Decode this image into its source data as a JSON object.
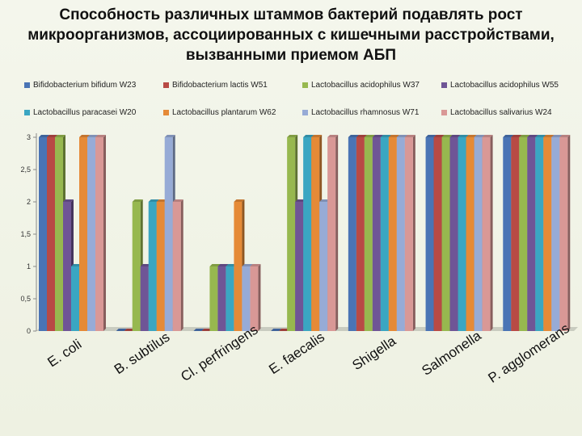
{
  "chart_data": {
    "type": "bar",
    "title_lines": [
      "Способность различных штаммов бактерий подавлять рост",
      "микроорганизмов,  ассоциированных с кишечными расстройствами,",
      "вызванными приемом АБП"
    ],
    "categories": [
      "E. coli",
      "B. subtilus",
      "Cl. perfringens",
      "E. faecalis",
      "Shigella",
      "Salmonella",
      "P. agglomerans"
    ],
    "series": [
      {
        "name": "Bifidobacterium bifidum W23",
        "color": "#4a74b5",
        "values": [
          3,
          0,
          0,
          0,
          3,
          3,
          3
        ]
      },
      {
        "name": "Bifidobacterium lactis W51",
        "color": "#b84a45",
        "values": [
          3,
          0,
          0,
          0,
          3,
          3,
          3
        ]
      },
      {
        "name": "Lactobacillus acidophilus W37",
        "color": "#97b84f",
        "values": [
          3,
          2,
          1,
          3,
          3,
          3,
          3
        ]
      },
      {
        "name": "Lactobacillus acidophilus W55",
        "color": "#6f5596",
        "values": [
          2,
          1,
          1,
          2,
          3,
          3,
          3
        ]
      },
      {
        "name": "Lactobacillus paracasei W20",
        "color": "#3aa6c2",
        "values": [
          1,
          2,
          1,
          3,
          3,
          3,
          3
        ]
      },
      {
        "name": "Lactobacillus plantarum W62",
        "color": "#e58a37",
        "values": [
          3,
          2,
          2,
          3,
          3,
          3,
          3
        ]
      },
      {
        "name": "Lactobacillus rhamnosus W71",
        "color": "#97abd6",
        "values": [
          3,
          3,
          1,
          2,
          3,
          3,
          3
        ]
      },
      {
        "name": "Lactobacillus salivarius W24",
        "color": "#d99896",
        "values": [
          3,
          2,
          1,
          3,
          3,
          3,
          3
        ]
      }
    ],
    "y_ticks": [
      "0",
      "0,5",
      "1",
      "1,5",
      "2",
      "2,5",
      "3"
    ],
    "ylim": [
      0,
      3
    ],
    "legend_position": "top",
    "grid": false
  }
}
